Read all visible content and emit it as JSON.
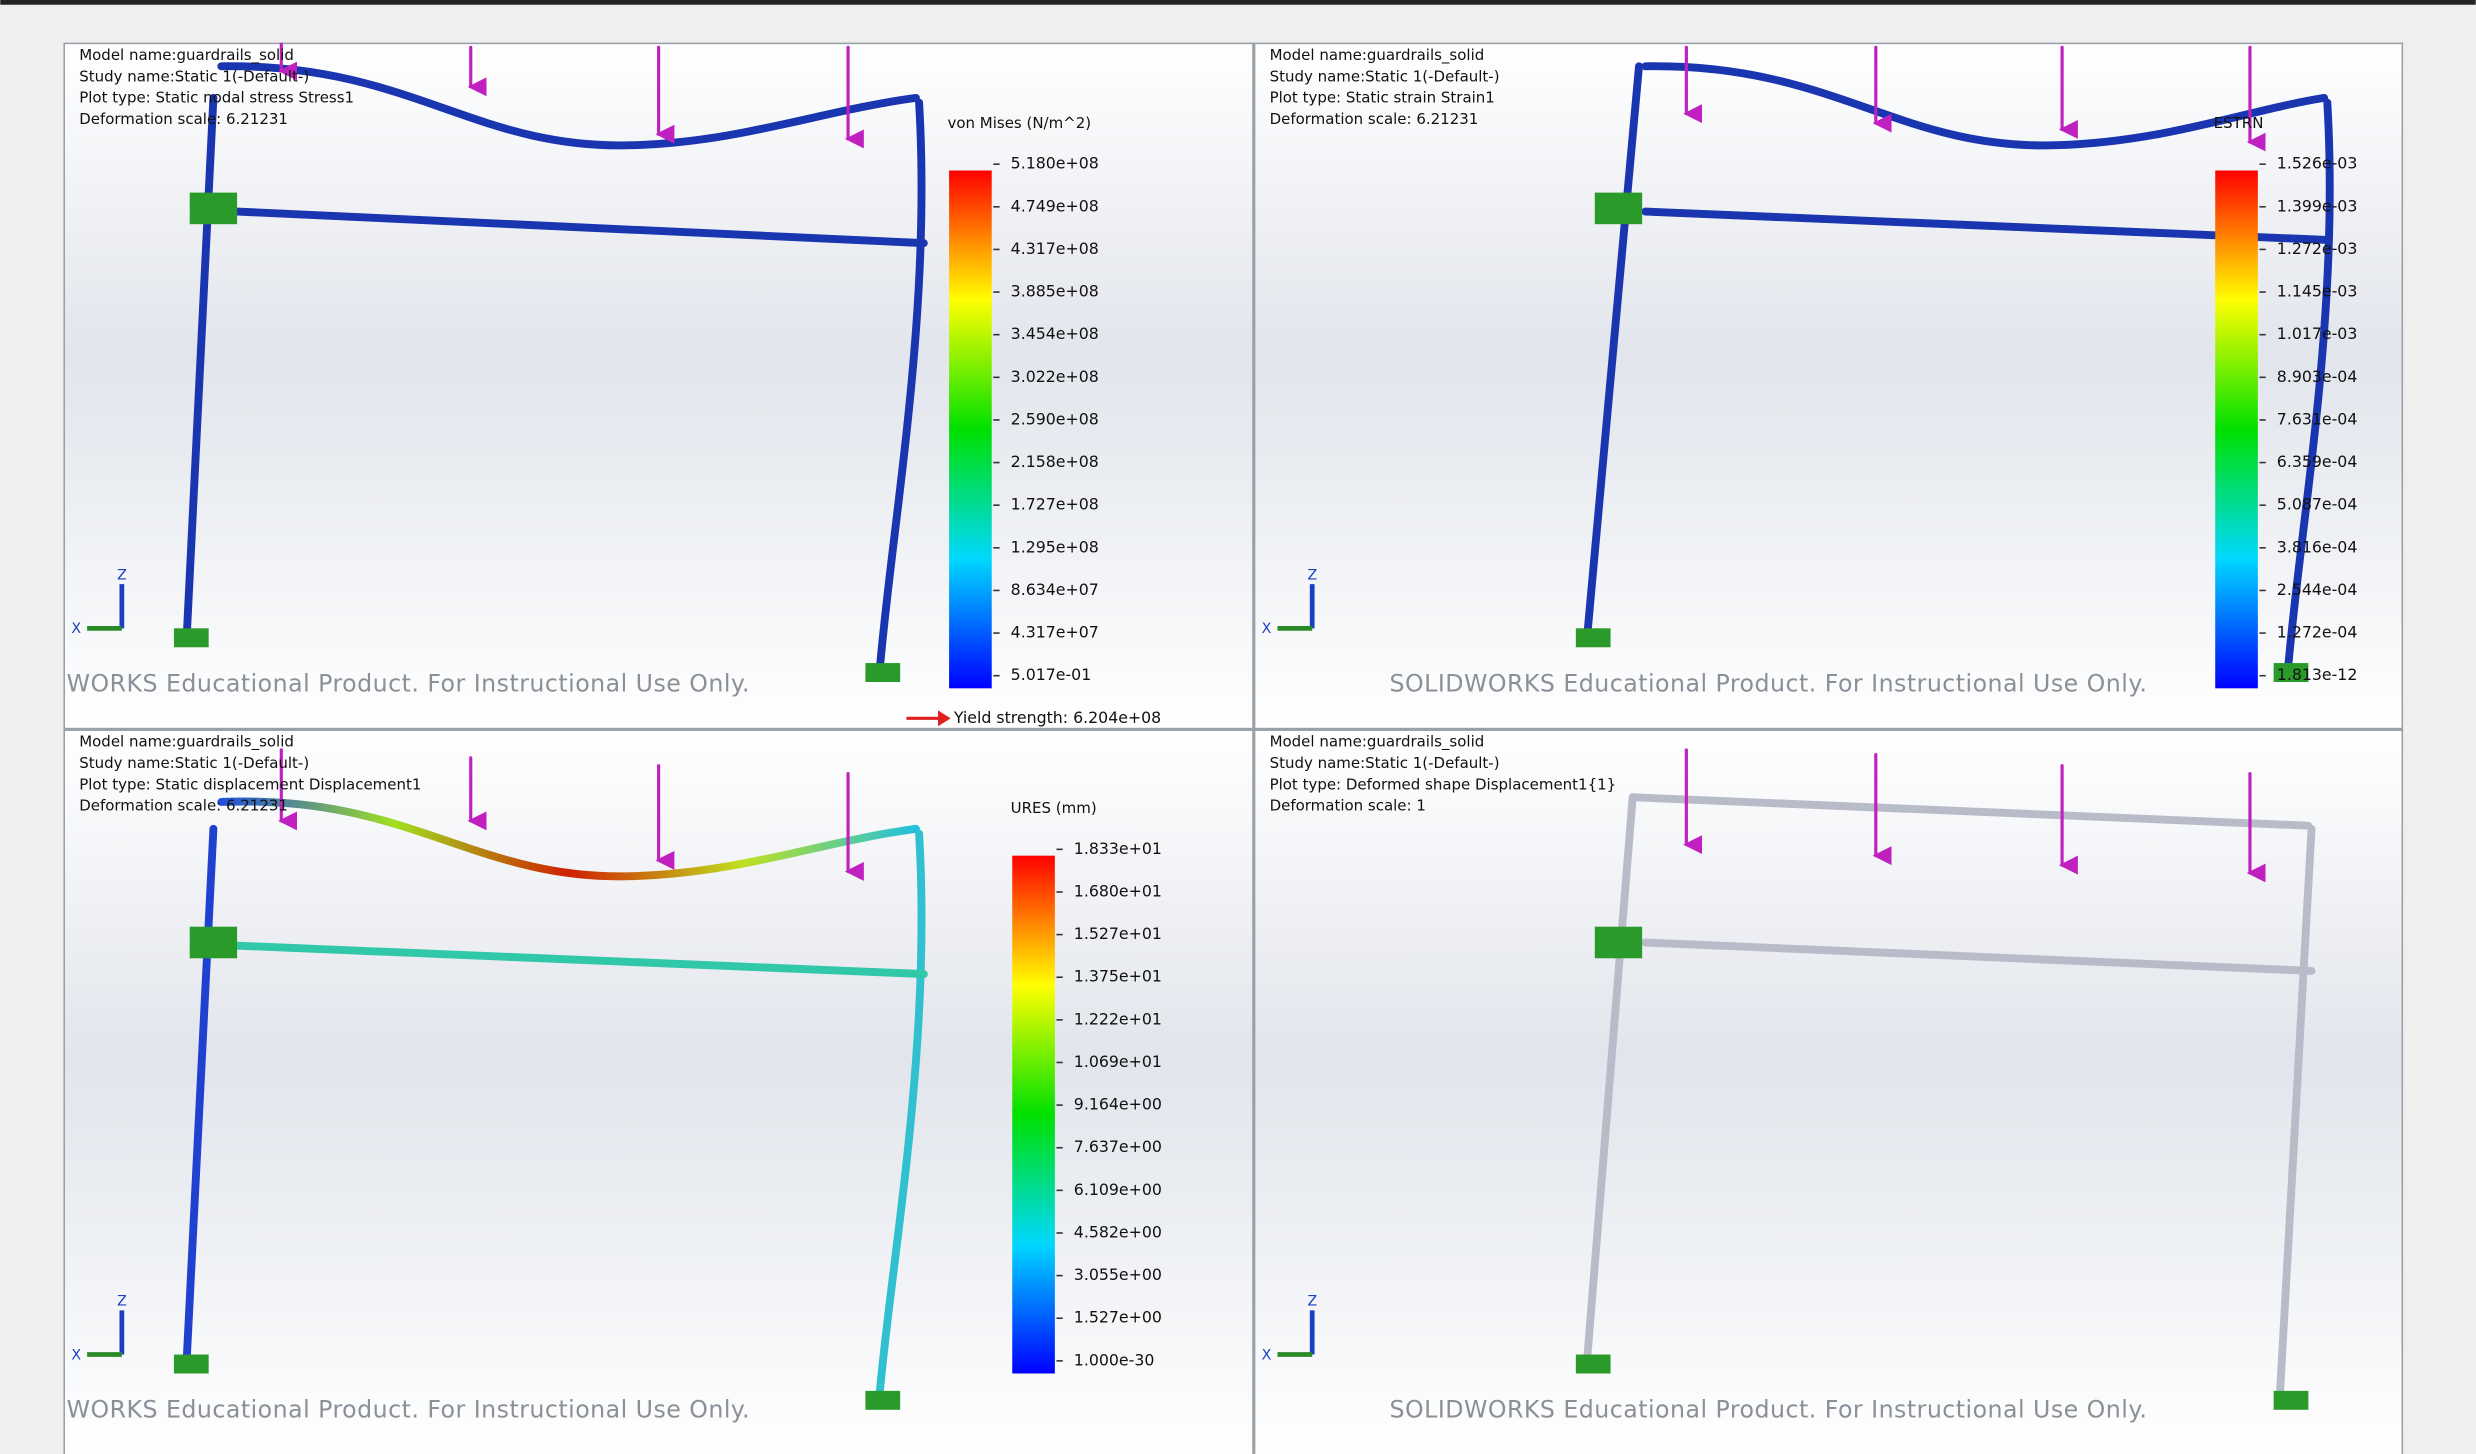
{
  "axis_labels": {
    "z": "Z",
    "x": "X"
  },
  "viewports": [
    {
      "info": [
        "Model name:guardrails_solid",
        "Study name:Static 1(-Default-)",
        "Plot type: Static nodal stress Stress1",
        "Deformation scale: 6.21231"
      ],
      "legend": {
        "title": "von Mises (N/m^2)",
        "labels": [
          "5.180e+08",
          "4.749e+08",
          "4.317e+08",
          "3.885e+08",
          "3.454e+08",
          "3.022e+08",
          "2.590e+08",
          "2.158e+08",
          "1.727e+08",
          "1.295e+08",
          "8.634e+07",
          "4.317e+07",
          "5.017e-01"
        ]
      },
      "yield_strength": "Yield strength: 6.204e+08",
      "watermark": "WORKS Educational Product. For Instructional Use Only."
    },
    {
      "info": [
        "Model name:guardrails_solid",
        "Study name:Static 1(-Default-)",
        "Plot type: Static strain Strain1",
        "Deformation scale: 6.21231"
      ],
      "legend": {
        "title": "ESTRN",
        "labels": [
          "1.526e-03",
          "1.399e-03",
          "1.272e-03",
          "1.145e-03",
          "1.017e-03",
          "8.903e-04",
          "7.631e-04",
          "6.359e-04",
          "5.087e-04",
          "3.816e-04",
          "2.544e-04",
          "1.272e-04",
          "1.813e-12"
        ]
      },
      "watermark": "SOLIDWORKS Educational Product. For Instructional Use Only."
    },
    {
      "info": [
        "Model name:guardrails_solid",
        "Study name:Static 1(-Default-)",
        "Plot type: Static displacement Displacement1",
        "Deformation scale: 6.21231"
      ],
      "legend": {
        "title": "URES (mm)",
        "labels": [
          "1.833e+01",
          "1.680e+01",
          "1.527e+01",
          "1.375e+01",
          "1.222e+01",
          "1.069e+01",
          "9.164e+00",
          "7.637e+00",
          "6.109e+00",
          "4.582e+00",
          "3.055e+00",
          "1.527e+00",
          "1.000e-30"
        ]
      },
      "watermark": "WORKS Educational Product. For Instructional Use Only."
    },
    {
      "info": [
        "Model name:guardrails_solid",
        "Study name:Static 1(-Default-)",
        "Plot type: Deformed shape Displacement1{1}",
        "Deformation scale: 1"
      ],
      "watermark": "SOLIDWORKS Educational Product. For Instructional Use Only."
    }
  ]
}
